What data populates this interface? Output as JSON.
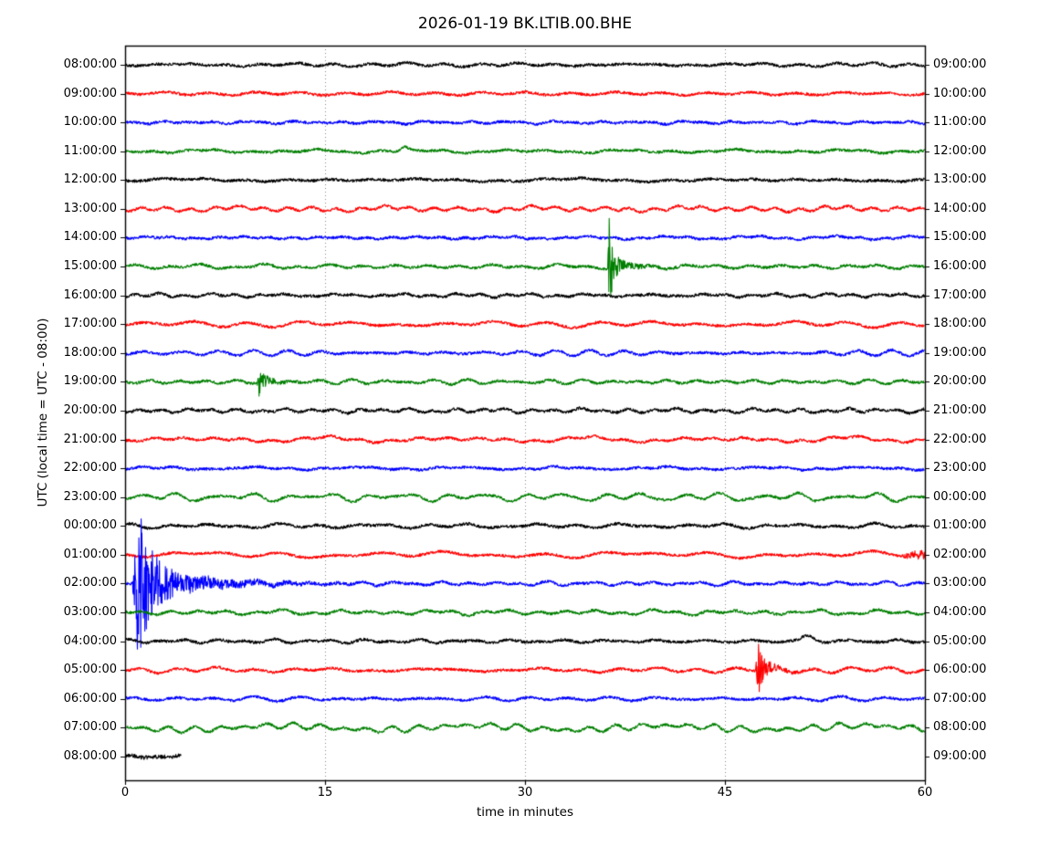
{
  "window": {
    "title": "2026-01-19 BK.LTIB.00.BHE"
  },
  "chart_data": {
    "type": "line",
    "subtype": "helicorder-dayplot",
    "title": "2026-01-19 BK.LTIB.00.BHE",
    "xlabel": "time in minutes",
    "ylabel": "UTC (local time = UTC - 08:00)",
    "xlim": [
      0,
      60
    ],
    "x_ticks": [
      "0",
      "15",
      "30",
      "45",
      "60"
    ],
    "grid": "vertical-dotted-at-15-30-45",
    "legend": "none",
    "trace_colors": {
      "black": "#000000",
      "red": "#ff0000",
      "blue": "#0000ff",
      "green": "#007f00"
    },
    "rows": [
      {
        "left_label": "08:00:00",
        "right_label": "09:00:00",
        "color": "black",
        "length_min": 60,
        "hf": 1.6,
        "lf": 1.0,
        "seed": 101,
        "events": []
      },
      {
        "left_label": "09:00:00",
        "right_label": "10:00:00",
        "color": "red",
        "length_min": 60,
        "hf": 1.5,
        "lf": 1.1,
        "seed": 202,
        "events": []
      },
      {
        "left_label": "10:00:00",
        "right_label": "11:00:00",
        "color": "blue",
        "length_min": 60,
        "hf": 1.5,
        "lf": 0.9,
        "seed": 303,
        "events": []
      },
      {
        "left_label": "11:00:00",
        "right_label": "12:00:00",
        "color": "green",
        "length_min": 60,
        "hf": 1.5,
        "lf": 1.2,
        "seed": 404,
        "events": [
          {
            "type": "bump",
            "t": 21.0,
            "amp": 4.5,
            "sigma": 0.25
          }
        ]
      },
      {
        "left_label": "12:00:00",
        "right_label": "13:00:00",
        "color": "black",
        "length_min": 60,
        "hf": 1.6,
        "lf": 1.0,
        "seed": 505,
        "events": []
      },
      {
        "left_label": "13:00:00",
        "right_label": "14:00:00",
        "color": "red",
        "length_min": 60,
        "hf": 1.5,
        "lf": 1.6,
        "seed": 606,
        "events": []
      },
      {
        "left_label": "14:00:00",
        "right_label": "15:00:00",
        "color": "blue",
        "length_min": 60,
        "hf": 1.5,
        "lf": 0.9,
        "seed": 707,
        "events": []
      },
      {
        "left_label": "15:00:00",
        "right_label": "16:00:00",
        "color": "green",
        "length_min": 60,
        "hf": 1.5,
        "lf": 1.2,
        "seed": 808,
        "events": [
          {
            "type": "quake",
            "t": 36.2,
            "amp": 52,
            "rise": 0.08,
            "decay": 0.28,
            "amp2": 8,
            "decay2": 1.3
          }
        ]
      },
      {
        "left_label": "16:00:00",
        "right_label": "17:00:00",
        "color": "black",
        "length_min": 60,
        "hf": 1.6,
        "lf": 1.1,
        "seed": 909,
        "events": []
      },
      {
        "left_label": "17:00:00",
        "right_label": "18:00:00",
        "color": "red",
        "length_min": 60,
        "hf": 1.5,
        "lf": 1.5,
        "seed": 1010,
        "events": []
      },
      {
        "left_label": "18:00:00",
        "right_label": "19:00:00",
        "color": "blue",
        "length_min": 60,
        "hf": 1.5,
        "lf": 1.3,
        "seed": 1111,
        "events": []
      },
      {
        "left_label": "19:00:00",
        "right_label": "20:00:00",
        "color": "green",
        "length_min": 60,
        "hf": 1.5,
        "lf": 1.4,
        "seed": 1212,
        "events": [
          {
            "type": "quake",
            "t": 9.9,
            "amp": 13,
            "rise": 0.1,
            "decay": 0.4,
            "amp2": 3,
            "decay2": 1.2
          }
        ]
      },
      {
        "left_label": "20:00:00",
        "right_label": "21:00:00",
        "color": "black",
        "length_min": 60,
        "hf": 1.6,
        "lf": 1.3,
        "seed": 1313,
        "events": []
      },
      {
        "left_label": "21:00:00",
        "right_label": "22:00:00",
        "color": "red",
        "length_min": 60,
        "hf": 1.5,
        "lf": 2.2,
        "seed": 1414,
        "events": []
      },
      {
        "left_label": "22:00:00",
        "right_label": "23:00:00",
        "color": "blue",
        "length_min": 60,
        "hf": 1.5,
        "lf": 1.1,
        "seed": 1515,
        "events": []
      },
      {
        "left_label": "23:00:00",
        "right_label": "00:00:00",
        "color": "green",
        "length_min": 60,
        "hf": 1.5,
        "lf": 2.2,
        "seed": 1616,
        "events": []
      },
      {
        "left_label": "00:00:00",
        "right_label": "01:00:00",
        "color": "black",
        "length_min": 60,
        "hf": 1.6,
        "lf": 1.2,
        "seed": 1717,
        "events": []
      },
      {
        "left_label": "01:00:00",
        "right_label": "02:00:00",
        "color": "red",
        "length_min": 60,
        "hf": 1.5,
        "lf": 1.4,
        "seed": 1818,
        "events": [
          {
            "type": "swell",
            "t": 58.2,
            "amp": 3.5,
            "rise": 1.0
          }
        ]
      },
      {
        "left_label": "02:00:00",
        "right_label": "03:00:00",
        "color": "blue",
        "length_min": 60,
        "hf": 1.5,
        "lf": 1.0,
        "seed": 1919,
        "events": [
          {
            "type": "quake",
            "t": 0.55,
            "amp": 72,
            "rise": 0.35,
            "decay": 0.85,
            "amp2": 22,
            "decay2": 3.8
          }
        ]
      },
      {
        "left_label": "03:00:00",
        "right_label": "04:00:00",
        "color": "green",
        "length_min": 60,
        "hf": 1.5,
        "lf": 1.2,
        "seed": 2020,
        "events": []
      },
      {
        "left_label": "04:00:00",
        "right_label": "05:00:00",
        "color": "black",
        "length_min": 60,
        "hf": 1.6,
        "lf": 1.2,
        "seed": 2121,
        "events": [
          {
            "type": "bump",
            "t": 51.2,
            "amp": 5,
            "sigma": 0.45
          }
        ]
      },
      {
        "left_label": "05:00:00",
        "right_label": "06:00:00",
        "color": "red",
        "length_min": 60,
        "hf": 1.5,
        "lf": 1.2,
        "seed": 2222,
        "events": [
          {
            "type": "quake",
            "t": 47.3,
            "amp": 34,
            "rise": 0.12,
            "decay": 0.35,
            "amp2": 7,
            "decay2": 1.1
          }
        ]
      },
      {
        "left_label": "06:00:00",
        "right_label": "07:00:00",
        "color": "blue",
        "length_min": 60,
        "hf": 1.5,
        "lf": 1.0,
        "seed": 2323,
        "events": []
      },
      {
        "left_label": "07:00:00",
        "right_label": "08:00:00",
        "color": "green",
        "length_min": 60,
        "hf": 1.5,
        "lf": 2.2,
        "seed": 2424,
        "events": []
      },
      {
        "left_label": "08:00:00",
        "right_label": "09:00:00",
        "color": "black",
        "length_min": 4.2,
        "hf": 2.2,
        "lf": 1.2,
        "seed": 2525,
        "events": []
      }
    ]
  }
}
